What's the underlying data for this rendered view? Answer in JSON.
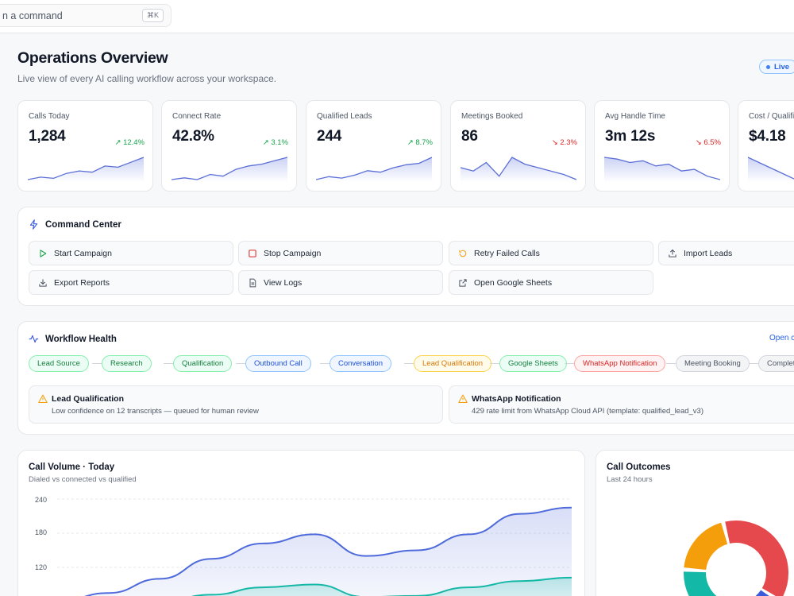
{
  "topbar": {
    "search_placeholder": "Search or run a command",
    "search_visible": "n a command",
    "shortcut": "⌘K"
  },
  "header": {
    "title": "Operations Overview",
    "subtitle": "Live view of every AI calling workflow across your workspace.",
    "live_label": "Live"
  },
  "kpis": [
    {
      "label": "Calls Today",
      "value": "1,284",
      "delta": "12.4%",
      "direction": "up",
      "trend": [
        4,
        6,
        5,
        9,
        11,
        10,
        15,
        14,
        18,
        22
      ]
    },
    {
      "label": "Connect Rate",
      "value": "42.8%",
      "delta": "3.1%",
      "direction": "up",
      "trend": [
        4,
        5,
        4,
        7,
        6,
        10,
        12,
        13,
        15,
        17
      ]
    },
    {
      "label": "Qualified Leads",
      "value": "244",
      "delta": "8.7%",
      "direction": "up",
      "trend": [
        5,
        7,
        6,
        8,
        11,
        10,
        13,
        15,
        16,
        20
      ]
    },
    {
      "label": "Meetings Booked",
      "value": "86",
      "delta": "2.3%",
      "direction": "down",
      "trend": [
        10,
        8,
        13,
        5,
        16,
        12,
        10,
        8,
        6,
        3
      ]
    },
    {
      "label": "Avg Handle Time",
      "value": "3m 12s",
      "delta": "6.5%",
      "direction": "down",
      "trend": [
        18,
        17,
        15,
        16,
        13,
        14,
        10,
        11,
        7,
        5
      ]
    },
    {
      "label": "Cost / Qualified",
      "value": "$4.18",
      "delta": "",
      "direction": "down",
      "trend": [
        18,
        17,
        16,
        15,
        14
      ]
    }
  ],
  "command_center": {
    "title": "Command Center",
    "buttons": [
      {
        "label": "Start Campaign",
        "icon": "play-icon"
      },
      {
        "label": "Stop Campaign",
        "icon": "stop-icon"
      },
      {
        "label": "Retry Failed Calls",
        "icon": "retry-icon"
      },
      {
        "label": "Import Leads",
        "icon": "upload-icon"
      },
      {
        "label": "Export Reports",
        "icon": "download-icon"
      },
      {
        "label": "View Logs",
        "icon": "file-icon"
      },
      {
        "label": "Open Google Sheets",
        "icon": "external-link-icon"
      }
    ]
  },
  "workflow_health": {
    "title": "Workflow Health",
    "open_link": "Open canvas",
    "stages": [
      {
        "label": "Lead Source",
        "status": "ok"
      },
      {
        "label": "Research",
        "status": "ok"
      },
      {
        "label": "Qualification",
        "status": "ok"
      },
      {
        "label": "Outbound Call",
        "status": "running"
      },
      {
        "label": "Conversation",
        "status": "running"
      },
      {
        "label": "Lead Qualification",
        "status": "warning"
      },
      {
        "label": "Google Sheets",
        "status": "ok"
      },
      {
        "label": "WhatsApp Notification",
        "status": "error"
      },
      {
        "label": "Meeting Booking",
        "status": "idle"
      },
      {
        "label": "Complete",
        "status": "idle"
      }
    ],
    "alerts": [
      {
        "title": "Lead Qualification",
        "message": "Low confidence on 12 transcripts — queued for human review"
      },
      {
        "title": "WhatsApp Notification",
        "message": "429 rate limit from WhatsApp Cloud API (template: qualified_lead_v3)"
      }
    ]
  },
  "status_colors": {
    "ok": {
      "bg": "#ecfdf5",
      "border": "#86efac",
      "text": "#15803d"
    },
    "running": {
      "bg": "#eff6ff",
      "border": "#93c5fd",
      "text": "#1d4ed8"
    },
    "warning": {
      "bg": "#fffbeb",
      "border": "#fcd34d",
      "text": "#d97706"
    },
    "error": {
      "bg": "#fef2f2",
      "border": "#fca5a5",
      "text": "#dc2626"
    },
    "idle": {
      "bg": "#f3f4f6",
      "border": "#d1d5db",
      "text": "#4b5563"
    }
  },
  "call_volume": {
    "title": "Call Volume · Today",
    "subtitle": "Dialed vs connected vs qualified"
  },
  "call_outcomes": {
    "title": "Call Outcomes",
    "subtitle": "Last 24 hours"
  },
  "chart_data": [
    {
      "type": "area",
      "title": "Call Volume · Today",
      "subtitle": "Dialed vs connected vs qualified",
      "yticks": [
        120,
        180,
        240
      ],
      "ylim": [
        60,
        250
      ],
      "grid": true,
      "x": [
        0,
        1,
        2,
        3,
        4,
        5,
        6,
        7,
        8,
        9,
        10
      ],
      "series": [
        {
          "values": [
            60,
            75,
            100,
            135,
            162,
            178,
            140,
            150,
            178,
            214,
            225
          ],
          "color": "#4f6bdb"
        },
        {
          "values": [
            40,
            48,
            60,
            72,
            85,
            90,
            68,
            70,
            85,
            96,
            102
          ],
          "color": "#14b8a6"
        }
      ]
    },
    {
      "type": "pie",
      "title": "Call Outcomes",
      "subtitle": "Last 24 hours",
      "slices": [
        {
          "value": 38,
          "color": "#e5484d"
        },
        {
          "value": 22,
          "color": "#3b5bdb"
        },
        {
          "value": 20,
          "color": "#14b8a6"
        },
        {
          "value": 20,
          "color": "#f59e0b"
        }
      ]
    }
  ]
}
